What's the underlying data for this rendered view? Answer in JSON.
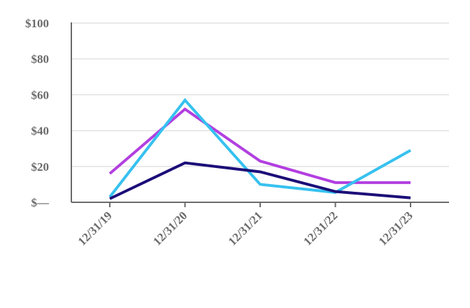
{
  "chart_data": {
    "type": "line",
    "title": "",
    "xlabel": "",
    "ylabel": "",
    "categories": [
      "12/31/19",
      "12/31/20",
      "12/31/21",
      "12/31/22",
      "12/31/23"
    ],
    "y_ticks": [
      {
        "value": 0,
        "label": "$—"
      },
      {
        "value": 20,
        "label": "$20"
      },
      {
        "value": 40,
        "label": "$40"
      },
      {
        "value": 60,
        "label": "$60"
      },
      {
        "value": 80,
        "label": "$80"
      },
      {
        "value": 100,
        "label": "$100"
      }
    ],
    "ylim": [
      0,
      100
    ],
    "grid": true,
    "legend": "none",
    "series": [
      {
        "color": "#b23fe0",
        "values": [
          16,
          52,
          23,
          11,
          11
        ]
      },
      {
        "color": "#36c1ef",
        "values": [
          3,
          57,
          10,
          5.5,
          29
        ]
      },
      {
        "color": "#1b0e78",
        "values": [
          2,
          22,
          17,
          6,
          2.5
        ]
      }
    ]
  }
}
